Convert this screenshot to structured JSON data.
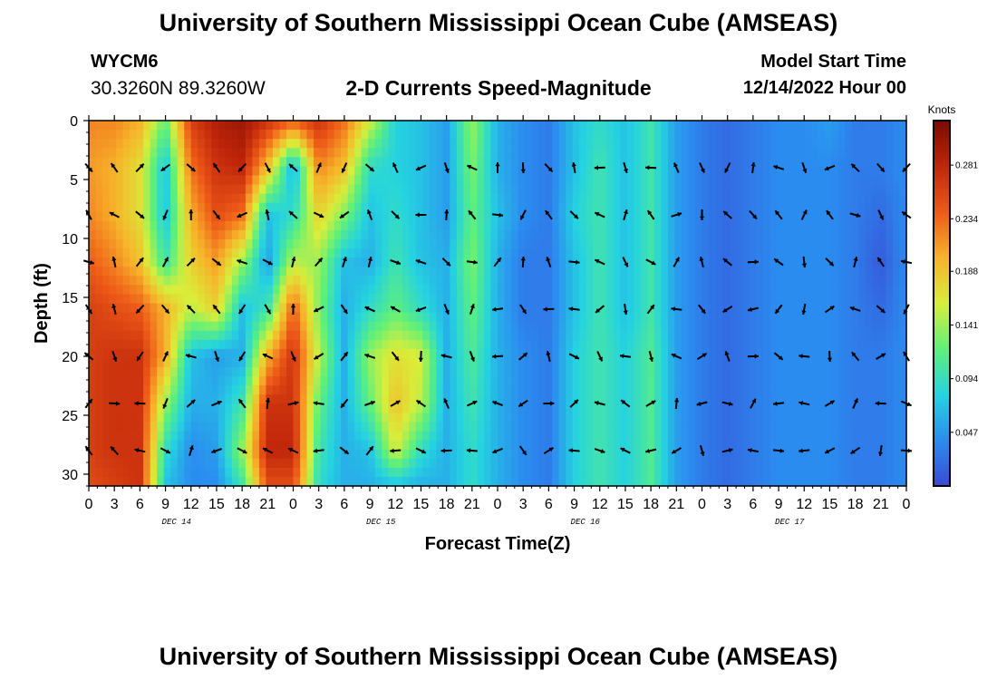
{
  "header": {
    "title": "University of Southern Mississippi Ocean Cube (AMSEAS)",
    "station_id": "WYCM6",
    "station_coords": "30.3260N  89.3260W",
    "chart_title": "2-D Currents Speed-Magnitude",
    "model_start_label": "Model Start Time",
    "model_start_value": "12/14/2022 Hour 00"
  },
  "footer": {
    "title": "University of Southern Mississippi Ocean Cube (AMSEAS)"
  },
  "chart_data": {
    "type": "heatmap",
    "title": "2-D Currents Speed-Magnitude",
    "xlabel": "Forecast Time(Z)",
    "ylabel": "Depth (ft)",
    "x_tick_labels": [
      "0",
      "3",
      "6",
      "9",
      "12",
      "15",
      "18",
      "21",
      "0",
      "3",
      "6",
      "9",
      "12",
      "15",
      "18",
      "21",
      "0",
      "3",
      "6",
      "9",
      "12",
      "15",
      "18",
      "21",
      "0",
      "3",
      "6",
      "9",
      "12",
      "15",
      "18",
      "21",
      "0"
    ],
    "date_labels": [
      "DEC 14",
      "DEC 15",
      "DEC 16",
      "DEC 17"
    ],
    "y_ticks": [
      0,
      5,
      10,
      15,
      20,
      25,
      30
    ],
    "ylim": [
      0,
      31
    ],
    "xlim_hours": [
      0,
      96
    ],
    "y_inverted": true,
    "colorbar": {
      "title": "Knots",
      "ticks": [
        0.047,
        0.094,
        0.141,
        0.188,
        0.234,
        0.281
      ],
      "range": [
        0,
        0.32
      ],
      "colors": [
        "#3a4ad6",
        "#2b8cf0",
        "#25d3e0",
        "#5ef07a",
        "#d8ee3a",
        "#f7b22a",
        "#ee5a18",
        "#c0260a",
        "#7a0b00"
      ]
    },
    "vector_depths_ft": [
      4,
      8,
      12,
      16,
      20,
      24,
      28
    ],
    "speed_knots_by_column": {
      "depths_ft": [
        0,
        4,
        8,
        12,
        16,
        20,
        24,
        28,
        31
      ],
      "hours": [
        0,
        3,
        6,
        9,
        12,
        15,
        18,
        21,
        24,
        27,
        30,
        33,
        36,
        39,
        42,
        45,
        48,
        51,
        54,
        57,
        60,
        63,
        66,
        69,
        72,
        75,
        78,
        81,
        84,
        87,
        90,
        93,
        96
      ],
      "values": [
        [
          0.22,
          0.21,
          0.22,
          0.24,
          0.26,
          0.26,
          0.26,
          0.26,
          0.25
        ],
        [
          0.22,
          0.2,
          0.2,
          0.22,
          0.25,
          0.27,
          0.27,
          0.27,
          0.26
        ],
        [
          0.2,
          0.17,
          0.17,
          0.19,
          0.24,
          0.27,
          0.27,
          0.27,
          0.27
        ],
        [
          0.12,
          0.07,
          0.07,
          0.1,
          0.2,
          0.2,
          0.14,
          0.09,
          0.07
        ],
        [
          0.26,
          0.23,
          0.2,
          0.18,
          0.15,
          0.07,
          0.06,
          0.04,
          0.04
        ],
        [
          0.29,
          0.27,
          0.25,
          0.21,
          0.18,
          0.05,
          0.06,
          0.05,
          0.04
        ],
        [
          0.3,
          0.28,
          0.23,
          0.14,
          0.07,
          0.06,
          0.1,
          0.14,
          0.1
        ],
        [
          0.27,
          0.19,
          0.07,
          0.05,
          0.1,
          0.2,
          0.27,
          0.28,
          0.25
        ],
        [
          0.24,
          0.06,
          0.09,
          0.15,
          0.24,
          0.27,
          0.27,
          0.28,
          0.25
        ],
        [
          0.27,
          0.22,
          0.18,
          0.14,
          0.13,
          0.15,
          0.12,
          0.1,
          0.09
        ],
        [
          0.23,
          0.19,
          0.13,
          0.07,
          0.06,
          0.06,
          0.06,
          0.06,
          0.06
        ],
        [
          0.16,
          0.09,
          0.07,
          0.06,
          0.09,
          0.14,
          0.12,
          0.07,
          0.06
        ],
        [
          0.08,
          0.08,
          0.09,
          0.1,
          0.12,
          0.17,
          0.19,
          0.16,
          0.07
        ],
        [
          0.07,
          0.07,
          0.07,
          0.07,
          0.09,
          0.16,
          0.15,
          0.09,
          0.06
        ],
        [
          0.05,
          0.05,
          0.05,
          0.06,
          0.06,
          0.06,
          0.06,
          0.06,
          0.06
        ],
        [
          0.14,
          0.13,
          0.12,
          0.13,
          0.12,
          0.11,
          0.1,
          0.09,
          0.09
        ],
        [
          0.06,
          0.06,
          0.07,
          0.06,
          0.06,
          0.06,
          0.06,
          0.06,
          0.06
        ],
        [
          0.04,
          0.04,
          0.04,
          0.03,
          0.03,
          0.04,
          0.04,
          0.04,
          0.04
        ],
        [
          0.03,
          0.03,
          0.03,
          0.03,
          0.03,
          0.03,
          0.03,
          0.03,
          0.03
        ],
        [
          0.07,
          0.07,
          0.08,
          0.07,
          0.07,
          0.08,
          0.08,
          0.08,
          0.08
        ],
        [
          0.09,
          0.1,
          0.1,
          0.1,
          0.1,
          0.1,
          0.1,
          0.1,
          0.1
        ],
        [
          0.07,
          0.07,
          0.07,
          0.07,
          0.07,
          0.08,
          0.08,
          0.08,
          0.08
        ],
        [
          0.1,
          0.1,
          0.1,
          0.1,
          0.1,
          0.11,
          0.11,
          0.11,
          0.11
        ],
        [
          0.05,
          0.05,
          0.05,
          0.05,
          0.05,
          0.05,
          0.05,
          0.05,
          0.05
        ],
        [
          0.03,
          0.03,
          0.03,
          0.03,
          0.03,
          0.03,
          0.03,
          0.03,
          0.03
        ],
        [
          0.02,
          0.02,
          0.02,
          0.02,
          0.02,
          0.02,
          0.02,
          0.02,
          0.02
        ],
        [
          0.03,
          0.03,
          0.03,
          0.03,
          0.03,
          0.03,
          0.03,
          0.03,
          0.03
        ],
        [
          0.04,
          0.04,
          0.04,
          0.04,
          0.04,
          0.04,
          0.04,
          0.04,
          0.04
        ],
        [
          0.04,
          0.04,
          0.04,
          0.04,
          0.04,
          0.04,
          0.04,
          0.04,
          0.04
        ],
        [
          0.05,
          0.04,
          0.04,
          0.04,
          0.04,
          0.04,
          0.04,
          0.04,
          0.04
        ],
        [
          0.03,
          0.03,
          0.03,
          0.03,
          0.03,
          0.03,
          0.03,
          0.03,
          0.03
        ],
        [
          0.03,
          0.03,
          0.02,
          0.01,
          0.02,
          0.03,
          0.03,
          0.03,
          0.03
        ],
        [
          0.04,
          0.04,
          0.04,
          0.04,
          0.04,
          0.04,
          0.04,
          0.04,
          0.04
        ]
      ]
    }
  }
}
